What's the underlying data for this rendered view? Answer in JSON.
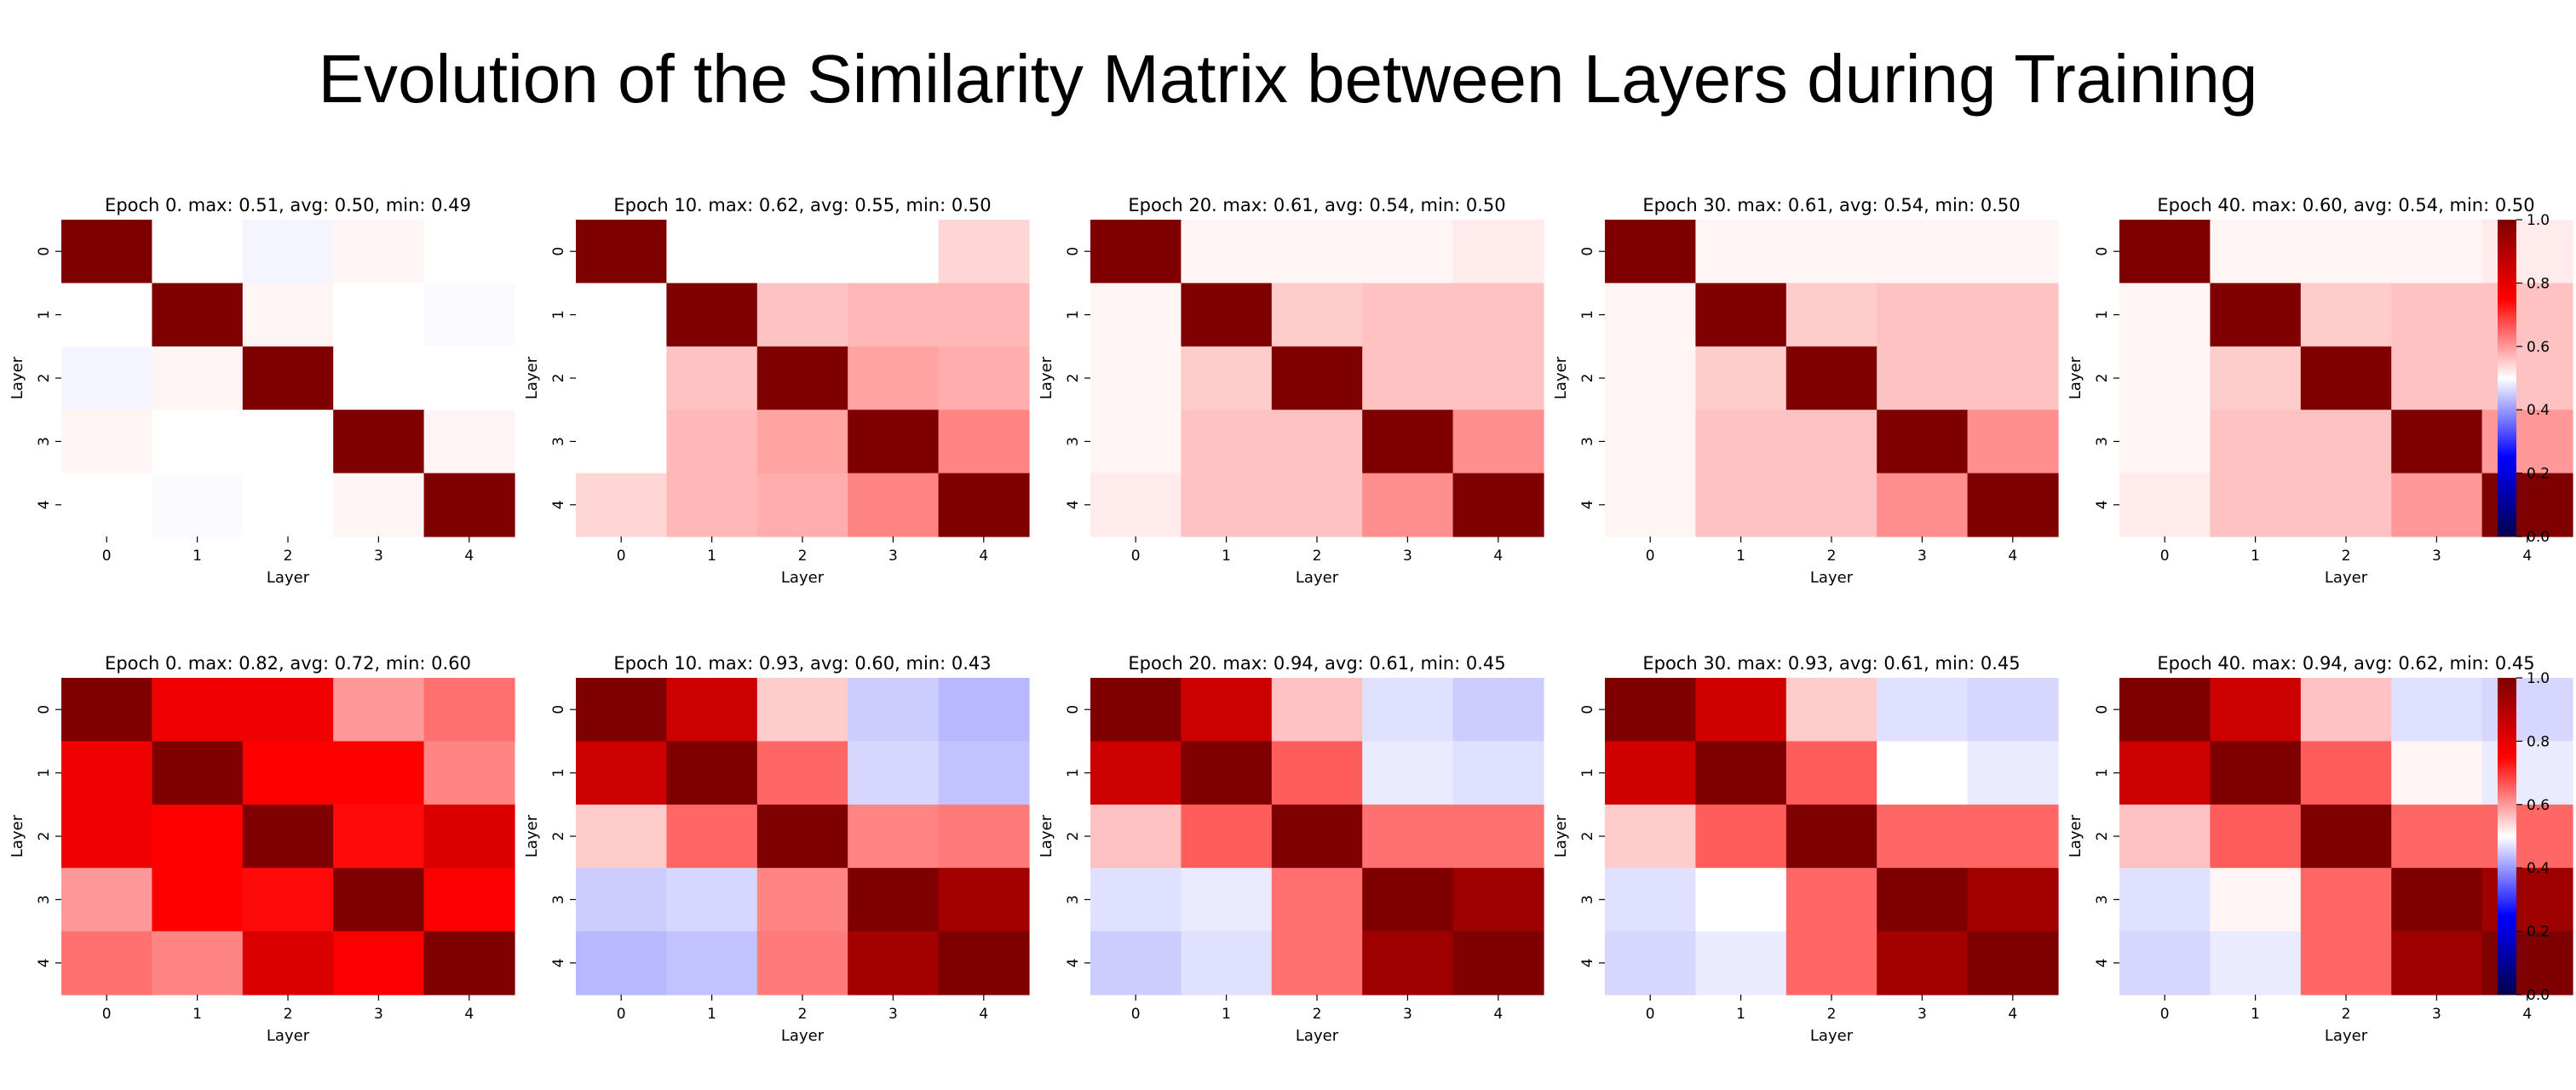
{
  "figure": {
    "title": "Evolution of the Similarity Matrix between Layers during Training"
  },
  "colormap": {
    "name": "seismic",
    "low": "#00004c",
    "mid_low": "#0000ff",
    "mid": "#ffffff",
    "mid_high": "#ff0000",
    "high": "#7f0000"
  },
  "chart_data": [
    {
      "type": "heatmap",
      "row": 0,
      "title": "Epoch 0. max: 0.51, avg: 0.50, min: 0.49",
      "xlabel": "Layer",
      "ylabel": "Layer",
      "xticks": [
        "0",
        "1",
        "2",
        "3",
        "4"
      ],
      "yticks": [
        "0",
        "1",
        "2",
        "3",
        "4"
      ],
      "vmin": 0.0,
      "vmax": 1.0,
      "values": [
        [
          1.0,
          0.5,
          0.49,
          0.51,
          0.5
        ],
        [
          0.5,
          1.0,
          0.51,
          0.5,
          0.495
        ],
        [
          0.49,
          0.51,
          1.0,
          0.5,
          0.5
        ],
        [
          0.51,
          0.5,
          0.5,
          1.0,
          0.51
        ],
        [
          0.5,
          0.495,
          0.5,
          0.51,
          1.0
        ]
      ]
    },
    {
      "type": "heatmap",
      "row": 0,
      "title": "Epoch 10. max: 0.62, avg: 0.55, min: 0.50",
      "xlabel": "Layer",
      "ylabel": "Layer",
      "xticks": [
        "0",
        "1",
        "2",
        "3",
        "4"
      ],
      "yticks": [
        "0",
        "1",
        "2",
        "3",
        "4"
      ],
      "vmin": 0.0,
      "vmax": 1.0,
      "values": [
        [
          1.0,
          0.5,
          0.5,
          0.5,
          0.54
        ],
        [
          0.5,
          1.0,
          0.56,
          0.57,
          0.57
        ],
        [
          0.5,
          0.56,
          1.0,
          0.59,
          0.58
        ],
        [
          0.5,
          0.57,
          0.59,
          1.0,
          0.62
        ],
        [
          0.54,
          0.57,
          0.58,
          0.62,
          1.0
        ]
      ]
    },
    {
      "type": "heatmap",
      "row": 0,
      "title": "Epoch 20. max: 0.61, avg: 0.54, min: 0.50",
      "xlabel": "Layer",
      "ylabel": "Layer",
      "xticks": [
        "0",
        "1",
        "2",
        "3",
        "4"
      ],
      "yticks": [
        "0",
        "1",
        "2",
        "3",
        "4"
      ],
      "vmin": 0.0,
      "vmax": 1.0,
      "values": [
        [
          1.0,
          0.51,
          0.51,
          0.51,
          0.52
        ],
        [
          0.51,
          1.0,
          0.55,
          0.56,
          0.56
        ],
        [
          0.51,
          0.55,
          1.0,
          0.56,
          0.56
        ],
        [
          0.51,
          0.56,
          0.56,
          1.0,
          0.61
        ],
        [
          0.52,
          0.56,
          0.56,
          0.61,
          1.0
        ]
      ]
    },
    {
      "type": "heatmap",
      "row": 0,
      "title": "Epoch 30. max: 0.61, avg: 0.54, min: 0.50",
      "xlabel": "Layer",
      "ylabel": "Layer",
      "xticks": [
        "0",
        "1",
        "2",
        "3",
        "4"
      ],
      "yticks": [
        "0",
        "1",
        "2",
        "3",
        "4"
      ],
      "vmin": 0.0,
      "vmax": 1.0,
      "values": [
        [
          1.0,
          0.51,
          0.51,
          0.51,
          0.51
        ],
        [
          0.51,
          1.0,
          0.55,
          0.56,
          0.56
        ],
        [
          0.51,
          0.55,
          1.0,
          0.56,
          0.56
        ],
        [
          0.51,
          0.56,
          0.56,
          1.0,
          0.61
        ],
        [
          0.51,
          0.56,
          0.56,
          0.61,
          1.0
        ]
      ]
    },
    {
      "type": "heatmap",
      "row": 0,
      "title": "Epoch 40. max: 0.60, avg: 0.54, min: 0.50",
      "xlabel": "Layer",
      "ylabel": "Layer",
      "xticks": [
        "0",
        "1",
        "2",
        "3",
        "4"
      ],
      "yticks": [
        "0",
        "1",
        "2",
        "3",
        "4"
      ],
      "vmin": 0.0,
      "vmax": 1.0,
      "values": [
        [
          1.0,
          0.51,
          0.51,
          0.51,
          0.52
        ],
        [
          0.51,
          1.0,
          0.55,
          0.56,
          0.56
        ],
        [
          0.51,
          0.55,
          1.0,
          0.56,
          0.56
        ],
        [
          0.51,
          0.56,
          0.56,
          1.0,
          0.6
        ],
        [
          0.52,
          0.56,
          0.56,
          0.6,
          1.0
        ]
      ]
    },
    {
      "type": "heatmap",
      "row": 1,
      "title": "Epoch 0. max: 0.82, avg: 0.72, min: 0.60",
      "xlabel": "Layer",
      "ylabel": "Layer",
      "xticks": [
        "0",
        "1",
        "2",
        "3",
        "4"
      ],
      "yticks": [
        "0",
        "1",
        "2",
        "3",
        "4"
      ],
      "vmin": 0.0,
      "vmax": 1.0,
      "values": [
        [
          1.0,
          0.78,
          0.78,
          0.6,
          0.64
        ],
        [
          0.78,
          1.0,
          0.75,
          0.75,
          0.62
        ],
        [
          0.78,
          0.75,
          1.0,
          0.74,
          0.82
        ],
        [
          0.6,
          0.75,
          0.74,
          1.0,
          0.76
        ],
        [
          0.64,
          0.62,
          0.82,
          0.76,
          1.0
        ]
      ]
    },
    {
      "type": "heatmap",
      "row": 1,
      "title": "Epoch 10. max: 0.93, avg: 0.60, min: 0.43",
      "xlabel": "Layer",
      "ylabel": "Layer",
      "xticks": [
        "0",
        "1",
        "2",
        "3",
        "4"
      ],
      "yticks": [
        "0",
        "1",
        "2",
        "3",
        "4"
      ],
      "vmin": 0.0,
      "vmax": 1.0,
      "values": [
        [
          1.0,
          0.85,
          0.55,
          0.45,
          0.43
        ],
        [
          0.85,
          1.0,
          0.65,
          0.46,
          0.44
        ],
        [
          0.55,
          0.65,
          1.0,
          0.62,
          0.63
        ],
        [
          0.45,
          0.46,
          0.62,
          1.0,
          0.93
        ],
        [
          0.43,
          0.44,
          0.63,
          0.93,
          1.0
        ]
      ]
    },
    {
      "type": "heatmap",
      "row": 1,
      "title": "Epoch 20. max: 0.94, avg: 0.61, min: 0.45",
      "xlabel": "Layer",
      "ylabel": "Layer",
      "xticks": [
        "0",
        "1",
        "2",
        "3",
        "4"
      ],
      "yticks": [
        "0",
        "1",
        "2",
        "3",
        "4"
      ],
      "vmin": 0.0,
      "vmax": 1.0,
      "values": [
        [
          1.0,
          0.85,
          0.56,
          0.47,
          0.45
        ],
        [
          0.85,
          1.0,
          0.66,
          0.48,
          0.47
        ],
        [
          0.56,
          0.66,
          1.0,
          0.64,
          0.64
        ],
        [
          0.47,
          0.48,
          0.64,
          1.0,
          0.94
        ],
        [
          0.45,
          0.47,
          0.64,
          0.94,
          1.0
        ]
      ]
    },
    {
      "type": "heatmap",
      "row": 1,
      "title": "Epoch 30. max: 0.93, avg: 0.61, min: 0.45",
      "xlabel": "Layer",
      "ylabel": "Layer",
      "xticks": [
        "0",
        "1",
        "2",
        "3",
        "4"
      ],
      "yticks": [
        "0",
        "1",
        "2",
        "3",
        "4"
      ],
      "vmin": 0.0,
      "vmax": 1.0,
      "values": [
        [
          1.0,
          0.84,
          0.55,
          0.47,
          0.46
        ],
        [
          0.84,
          1.0,
          0.66,
          0.5,
          0.48
        ],
        [
          0.55,
          0.66,
          1.0,
          0.65,
          0.65
        ],
        [
          0.47,
          0.5,
          0.65,
          1.0,
          0.93
        ],
        [
          0.46,
          0.48,
          0.65,
          0.93,
          1.0
        ]
      ]
    },
    {
      "type": "heatmap",
      "row": 1,
      "title": "Epoch 40. max: 0.94, avg: 0.62, min: 0.45",
      "xlabel": "Layer",
      "ylabel": "Layer",
      "xticks": [
        "0",
        "1",
        "2",
        "3",
        "4"
      ],
      "yticks": [
        "0",
        "1",
        "2",
        "3",
        "4"
      ],
      "vmin": 0.0,
      "vmax": 1.0,
      "values": [
        [
          1.0,
          0.85,
          0.56,
          0.47,
          0.46
        ],
        [
          0.85,
          1.0,
          0.66,
          0.51,
          0.48
        ],
        [
          0.56,
          0.66,
          1.0,
          0.65,
          0.65
        ],
        [
          0.47,
          0.51,
          0.65,
          1.0,
          0.94
        ],
        [
          0.46,
          0.48,
          0.65,
          0.94,
          1.0
        ]
      ]
    }
  ],
  "colorbars": [
    {
      "row": 0,
      "ticks": [
        "0.0",
        "0.2",
        "0.4",
        "0.6",
        "0.8",
        "1.0"
      ]
    },
    {
      "row": 1,
      "ticks": [
        "0.0",
        "0.2",
        "0.4",
        "0.6",
        "0.8",
        "1.0"
      ]
    }
  ]
}
